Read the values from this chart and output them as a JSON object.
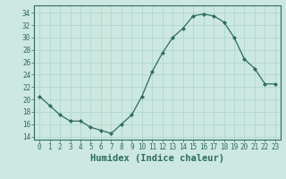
{
  "x": [
    0,
    1,
    2,
    3,
    4,
    5,
    6,
    7,
    8,
    9,
    10,
    11,
    12,
    13,
    14,
    15,
    16,
    17,
    18,
    19,
    20,
    21,
    22,
    23
  ],
  "y": [
    20.5,
    19.0,
    17.5,
    16.5,
    16.5,
    15.5,
    15.0,
    14.5,
    16.0,
    17.5,
    20.5,
    24.5,
    27.5,
    30.0,
    31.5,
    33.5,
    33.8,
    33.5,
    32.5,
    30.0,
    26.5,
    25.0,
    22.5,
    22.5
  ],
  "line_color": "#2e6b5e",
  "marker": "D",
  "marker_size": 2.2,
  "bg_color": "#cce8e0",
  "grid_color": "#b0d8ce",
  "xlabel": "Humidex (Indice chaleur)",
  "xlim": [
    -0.5,
    23.5
  ],
  "ylim": [
    13.5,
    35.2
  ],
  "yticks": [
    14,
    16,
    18,
    20,
    22,
    24,
    26,
    28,
    30,
    32,
    34
  ],
  "xticks": [
    0,
    1,
    2,
    3,
    4,
    5,
    6,
    7,
    8,
    9,
    10,
    11,
    12,
    13,
    14,
    15,
    16,
    17,
    18,
    19,
    20,
    21,
    22,
    23
  ],
  "tick_label_fontsize": 5.5,
  "xlabel_fontsize": 7.5
}
